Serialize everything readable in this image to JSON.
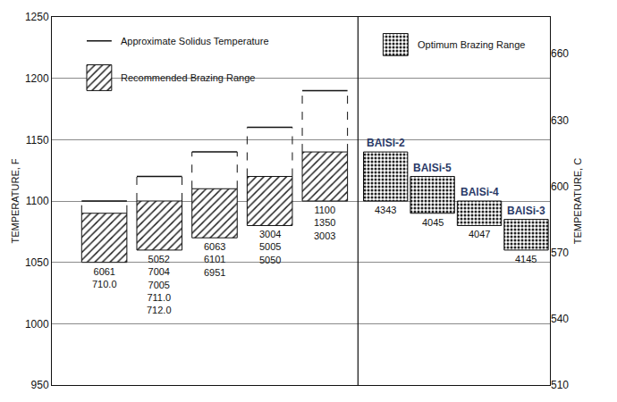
{
  "chart_data": {
    "type": "rangebar",
    "y_label": "TEMPERATURE, F",
    "y2_label": "TEMPERATURE, C",
    "ylim": [
      950,
      1250
    ],
    "yticks": [
      950,
      1000,
      1050,
      1100,
      1150,
      1200,
      1250
    ],
    "y2lim": [
      510,
      676.7
    ],
    "y2ticks": [
      510,
      540,
      570,
      600,
      630,
      660
    ],
    "grid": true,
    "panels": [
      {
        "marker": "hatch",
        "legend": [
          {
            "label": "Approximate Solidus Temperature",
            "marker": "line"
          },
          {
            "label": "Recommended Brazing Range",
            "marker": "hatch"
          }
        ],
        "groups": [
          {
            "alloys": [
              "6061",
              "710.0"
            ],
            "low": 1050,
            "high": 1090,
            "solidus": 1100
          },
          {
            "alloys": [
              "5052",
              "7004",
              "7005",
              "711.0",
              "712.0"
            ],
            "low": 1060,
            "high": 1100,
            "solidus": 1120
          },
          {
            "alloys": [
              "6063",
              "6101",
              "6951"
            ],
            "low": 1070,
            "high": 1110,
            "solidus": 1140
          },
          {
            "alloys": [
              "3004",
              "5005",
              "5050"
            ],
            "low": 1080,
            "high": 1120,
            "solidus": 1160
          },
          {
            "alloys": [
              "1100",
              "1350",
              "3003"
            ],
            "low": 1100,
            "high": 1140,
            "solidus": 1190
          }
        ]
      },
      {
        "marker": "dots",
        "legend": [
          {
            "label": "Optimum Brazing Range",
            "marker": "dots"
          }
        ],
        "groups": [
          {
            "name": "BAlSi-2",
            "alloys": [
              "4343"
            ],
            "low": 1100,
            "high": 1140
          },
          {
            "name": "BAlSi-5",
            "alloys": [
              "4045"
            ],
            "low": 1090,
            "high": 1120
          },
          {
            "name": "BAlSi-4",
            "alloys": [
              "4047"
            ],
            "low": 1080,
            "high": 1100
          },
          {
            "name": "BAlSi-3",
            "alloys": [
              "4145"
            ],
            "low": 1060,
            "high": 1085
          }
        ]
      }
    ]
  }
}
